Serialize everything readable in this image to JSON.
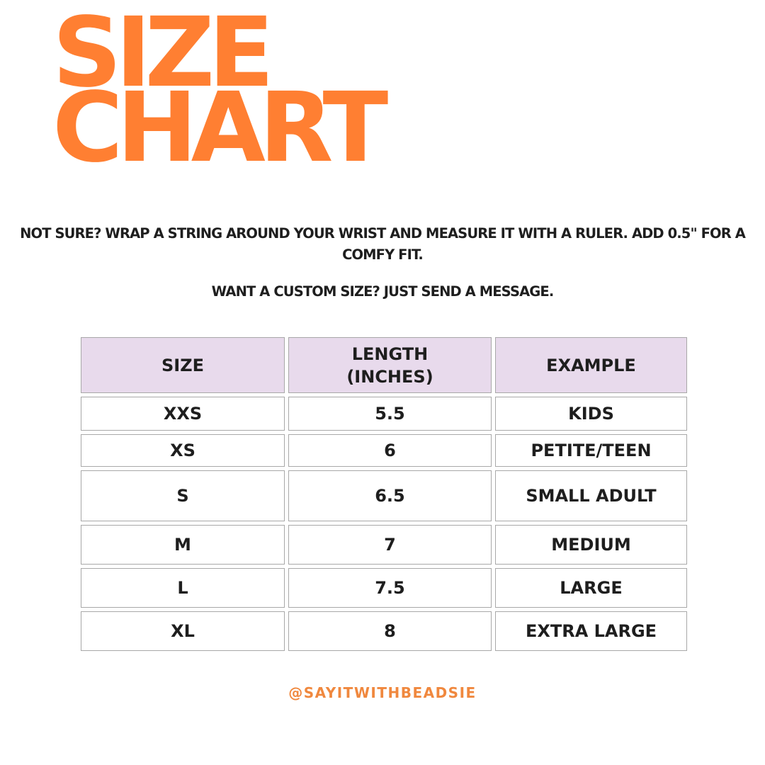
{
  "header": {
    "title_lines": [
      "SIZE",
      "CHART"
    ]
  },
  "instructions": [
    "NOT SURE?  WRAP A STRING AROUND YOUR WRIST AND MEASURE IT WITH A RULER. ADD 0.5\" FOR A COMFY FIT.",
    "WANT A CUSTOM SIZE? JUST SEND A MESSAGE."
  ],
  "table": {
    "columns": [
      "SIZE",
      "LENGTH (INCHES)",
      "EXAMPLE"
    ],
    "rows": [
      [
        "XXS",
        5.5,
        "KIDS"
      ],
      [
        "XS",
        6,
        "PETITE/TEEN"
      ],
      [
        "S",
        6.5,
        "SMALL ADULT"
      ],
      [
        "M",
        7,
        "MEDIUM"
      ],
      [
        "L",
        7.5,
        "LARGE"
      ],
      [
        "XL",
        8,
        "EXTRA LARGE"
      ]
    ]
  },
  "footer": {
    "handle": "@SAYITWITHBEADSIE"
  }
}
